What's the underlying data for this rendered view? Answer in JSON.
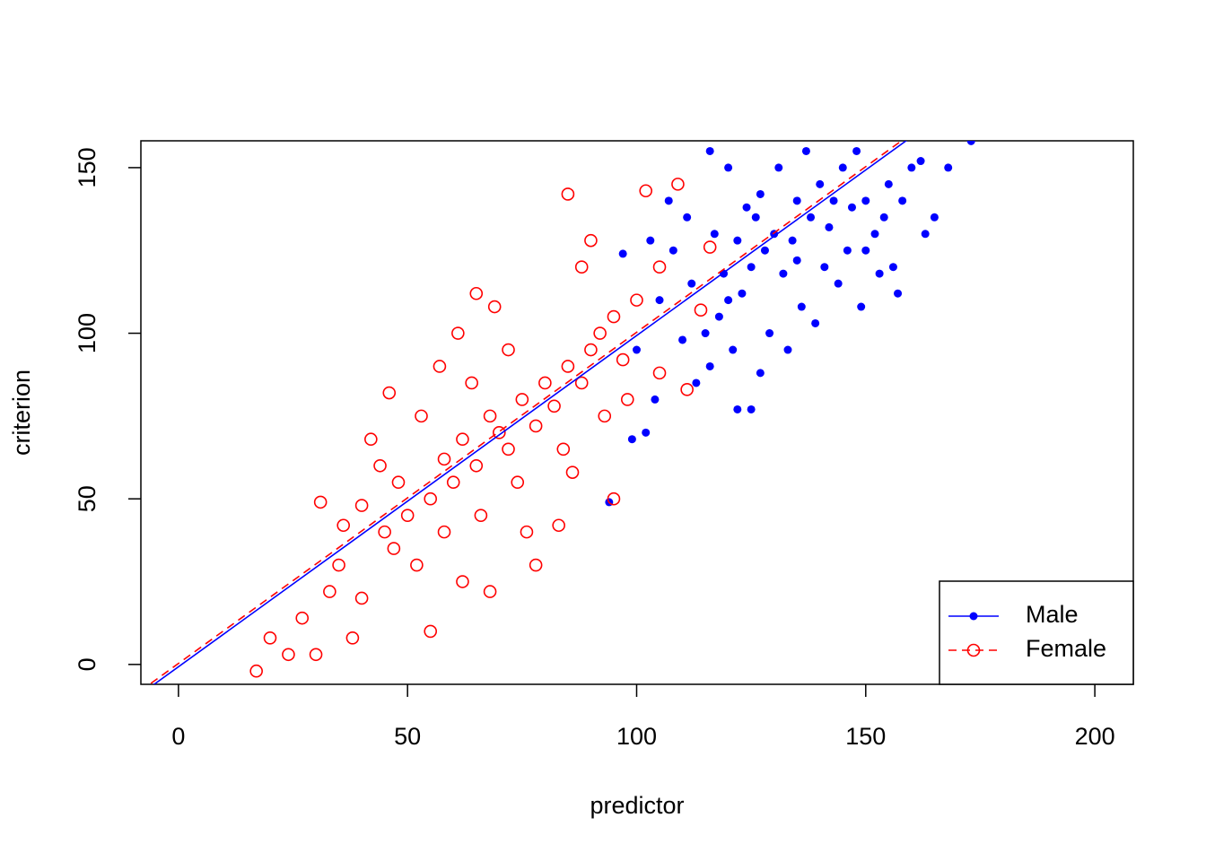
{
  "chart_data": {
    "type": "scatter",
    "xlabel": "predictor",
    "ylabel": "criterion",
    "xlim": [
      -8.2,
      208.4
    ],
    "ylim": [
      -6,
      158.1
    ],
    "xticks": [
      0,
      50,
      100,
      150,
      200
    ],
    "yticks": [
      0,
      50,
      100,
      150
    ],
    "grid": false,
    "legend": "bottomright",
    "series": [
      {
        "name": "Male",
        "color": "#0000ff",
        "marker": "filled",
        "line_style": "solid",
        "x": [
          130,
          125,
          135,
          140,
          120,
          128,
          132,
          138,
          145,
          150,
          118,
          115,
          122,
          126,
          134,
          142,
          148,
          155,
          160,
          110,
          112,
          108,
          105,
          100,
          104,
          107,
          97,
          94,
          168,
          173,
          122,
          125,
          150,
          153,
          158,
          165,
          162,
          144,
          136,
          129,
          121,
          116,
          113,
          119,
          124,
          131,
          137,
          141,
          146,
          152,
          156,
          139,
          133,
          127,
          117,
          111,
          103,
          102,
          99,
          163,
          157,
          149,
          143,
          135,
          123,
          127,
          120,
          116,
          147,
          154
        ],
        "values": [
          130,
          120,
          140,
          145,
          110,
          125,
          118,
          135,
          150,
          140,
          105,
          100,
          128,
          135,
          128,
          132,
          155,
          145,
          150,
          98,
          115,
          125,
          110,
          95,
          80,
          140,
          124,
          49,
          150,
          158,
          77,
          77,
          125,
          118,
          140,
          135,
          152,
          115,
          108,
          100,
          95,
          90,
          85,
          118,
          138,
          150,
          155,
          120,
          125,
          130,
          120,
          103,
          95,
          88,
          130,
          135,
          128,
          70,
          68,
          130,
          112,
          108,
          140,
          122,
          112,
          142,
          150,
          155,
          138,
          135
        ],
        "fit_x": [
          -6,
          160
        ],
        "fit_y": [
          -6.7,
          159.3
        ]
      },
      {
        "name": "Female",
        "color": "#ff0000",
        "marker": "open",
        "line_style": "dashed",
        "x": [
          70,
          65,
          75,
          80,
          60,
          55,
          85,
          90,
          68,
          72,
          62,
          58,
          50,
          45,
          48,
          78,
          82,
          88,
          92,
          95,
          100,
          105,
          85,
          102,
          109,
          114,
          116,
          17,
          20,
          24,
          27,
          30,
          31,
          35,
          38,
          40,
          42,
          46,
          52,
          55,
          58,
          62,
          65,
          68,
          72,
          76,
          78,
          83,
          86,
          90,
          95,
          98,
          105,
          111,
          64,
          66,
          74,
          84,
          88,
          93,
          97,
          53,
          47,
          44,
          40,
          36,
          33,
          57,
          61,
          69
        ],
        "values": [
          70,
          60,
          80,
          85,
          55,
          50,
          90,
          95,
          75,
          65,
          68,
          62,
          45,
          40,
          55,
          72,
          78,
          85,
          100,
          105,
          110,
          120,
          142,
          143,
          145,
          107,
          126,
          -2,
          8,
          3,
          14,
          3,
          49,
          30,
          8,
          20,
          68,
          82,
          30,
          10,
          40,
          25,
          112,
          22,
          95,
          40,
          30,
          42,
          58,
          128,
          50,
          80,
          88,
          83,
          85,
          45,
          55,
          65,
          120,
          75,
          92,
          75,
          35,
          60,
          48,
          42,
          22,
          90,
          100,
          108
        ],
        "fit_x": [
          -6,
          160
        ],
        "fit_y": [
          -5.7,
          160.3
        ]
      }
    ]
  }
}
